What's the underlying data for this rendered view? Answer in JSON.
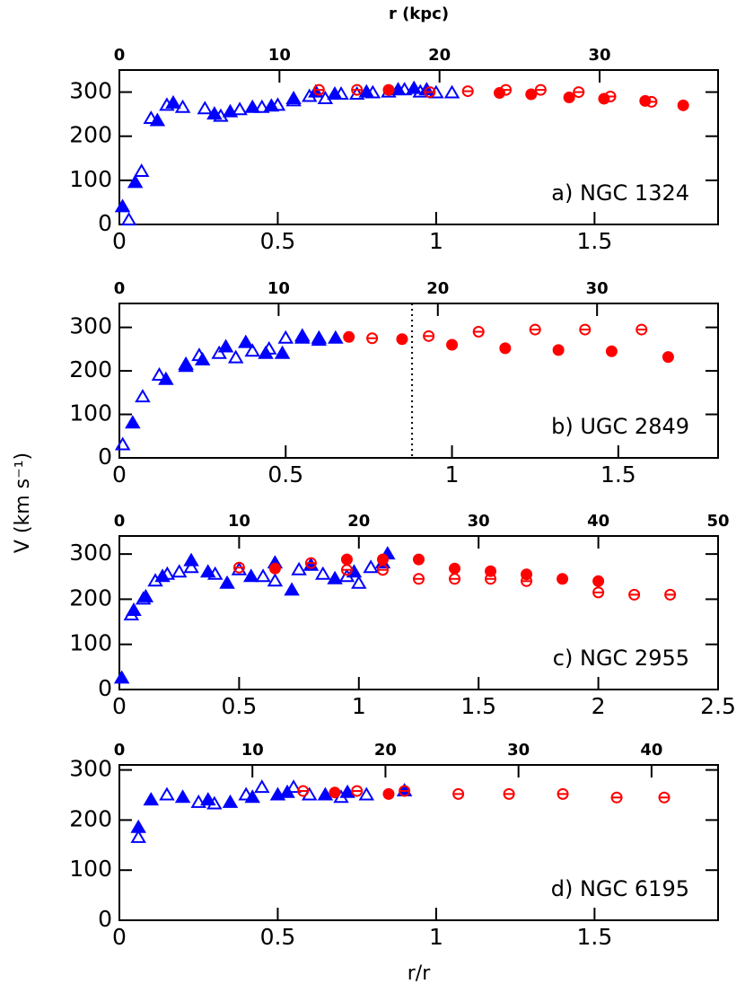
{
  "y_label": "V (km s⁻¹)",
  "chart_data": [
    {
      "type": "scatter",
      "annotation": "a) NGC 1324",
      "x2label": "r (kpc)",
      "xlim": [
        0,
        1.89
      ],
      "xticks": [
        0,
        0.5,
        1,
        1.5
      ],
      "x2lim": [
        0,
        37.4
      ],
      "x2ticks": [
        0,
        10,
        20,
        30
      ],
      "ylim": [
        0,
        350
      ],
      "yticks": [
        0,
        100,
        200,
        300
      ],
      "series": [
        {
          "color": "#0000ff",
          "marker": "triangle",
          "filled": false,
          "x": [
            0.03,
            0.07,
            0.1,
            0.15,
            0.2,
            0.27,
            0.32,
            0.38,
            0.45,
            0.5,
            0.55,
            0.6,
            0.65,
            0.7,
            0.75,
            0.8,
            0.85,
            0.9,
            0.95,
            1.0,
            1.05
          ],
          "values": [
            10,
            120,
            240,
            270,
            265,
            262,
            245,
            260,
            265,
            270,
            280,
            290,
            285,
            295,
            295,
            298,
            300,
            305,
            300,
            298,
            298
          ]
        },
        {
          "color": "#0000ff",
          "marker": "triangle",
          "filled": true,
          "x": [
            0.01,
            0.05,
            0.12,
            0.17,
            0.3,
            0.35,
            0.42,
            0.48,
            0.55,
            0.62,
            0.68,
            0.78,
            0.88,
            0.93,
            0.97
          ],
          "values": [
            40,
            95,
            235,
            275,
            250,
            255,
            265,
            268,
            285,
            300,
            295,
            300,
            305,
            308,
            305
          ]
        },
        {
          "color": "#ff0000",
          "marker": "circle",
          "filled": false,
          "x": [
            0.63,
            0.75,
            0.98,
            1.1,
            1.22,
            1.33,
            1.45,
            1.55,
            1.68
          ],
          "values": [
            305,
            305,
            300,
            302,
            305,
            305,
            300,
            290,
            278
          ]
        },
        {
          "color": "#ff0000",
          "marker": "circle",
          "filled": true,
          "x": [
            0.85,
            1.2,
            1.3,
            1.42,
            1.53,
            1.66,
            1.78
          ],
          "values": [
            305,
            298,
            295,
            288,
            285,
            280,
            270
          ]
        }
      ]
    },
    {
      "type": "scatter",
      "annotation": "b) UGC 2849",
      "vline": 0.88,
      "xlim": [
        0,
        1.8
      ],
      "xticks": [
        0,
        0.5,
        1,
        1.5
      ],
      "x2lim": [
        0,
        37.6
      ],
      "x2ticks": [
        0,
        10,
        20,
        30
      ],
      "ylim": [
        0,
        355
      ],
      "yticks": [
        0,
        100,
        200,
        300
      ],
      "series": [
        {
          "color": "#0000ff",
          "marker": "triangle",
          "filled": false,
          "x": [
            0.01,
            0.07,
            0.12,
            0.2,
            0.24,
            0.3,
            0.35,
            0.4,
            0.45,
            0.5,
            0.55,
            0.6
          ],
          "values": [
            30,
            140,
            190,
            215,
            235,
            240,
            230,
            245,
            250,
            275,
            280,
            275
          ]
        },
        {
          "color": "#0000ff",
          "marker": "triangle",
          "filled": true,
          "x": [
            0.04,
            0.14,
            0.2,
            0.25,
            0.32,
            0.38,
            0.44,
            0.49,
            0.55,
            0.6,
            0.65
          ],
          "values": [
            80,
            180,
            210,
            225,
            255,
            265,
            240,
            240,
            275,
            270,
            275
          ]
        },
        {
          "color": "#ff0000",
          "marker": "circle",
          "filled": false,
          "x": [
            0.76,
            0.93,
            1.08,
            1.25,
            1.4,
            1.57
          ],
          "values": [
            275,
            280,
            290,
            295,
            295,
            295
          ]
        },
        {
          "color": "#ff0000",
          "marker": "circle",
          "filled": true,
          "x": [
            0.69,
            0.85,
            1.0,
            1.16,
            1.32,
            1.48,
            1.65
          ],
          "values": [
            278,
            273,
            260,
            252,
            248,
            245,
            232
          ]
        }
      ]
    },
    {
      "type": "scatter",
      "annotation": "c) NGC 2955",
      "xlim": [
        0,
        2.5
      ],
      "xticks": [
        0,
        0.5,
        1,
        1.5,
        2,
        2.5
      ],
      "x2lim": [
        0,
        50
      ],
      "x2ticks": [
        0,
        10,
        20,
        30,
        40,
        50
      ],
      "ylim": [
        0,
        340
      ],
      "yticks": [
        0,
        100,
        200,
        300
      ],
      "series": [
        {
          "color": "#0000ff",
          "marker": "triangle",
          "filled": false,
          "x": [
            0.05,
            0.1,
            0.15,
            0.2,
            0.25,
            0.3,
            0.4,
            0.5,
            0.6,
            0.65,
            0.75,
            0.85,
            0.95,
            1.0,
            1.05
          ],
          "values": [
            165,
            200,
            240,
            255,
            260,
            270,
            255,
            265,
            250,
            240,
            265,
            255,
            250,
            235,
            270
          ]
        },
        {
          "color": "#0000ff",
          "marker": "triangle",
          "filled": true,
          "x": [
            0.01,
            0.06,
            0.11,
            0.18,
            0.3,
            0.37,
            0.45,
            0.55,
            0.65,
            0.72,
            0.8,
            0.9,
            0.98,
            1.1,
            1.12
          ],
          "values": [
            25,
            175,
            205,
            250,
            285,
            260,
            235,
            250,
            280,
            220,
            275,
            245,
            260,
            280,
            300
          ]
        },
        {
          "color": "#ff0000",
          "marker": "circle",
          "filled": false,
          "x": [
            0.5,
            0.8,
            0.95,
            1.1,
            1.25,
            1.4,
            1.55,
            1.7,
            2.0,
            2.15,
            2.3
          ],
          "values": [
            270,
            280,
            265,
            265,
            245,
            245,
            245,
            240,
            215,
            210,
            210
          ]
        },
        {
          "color": "#ff0000",
          "marker": "circle",
          "filled": true,
          "x": [
            0.65,
            0.95,
            1.1,
            1.25,
            1.4,
            1.55,
            1.7,
            1.85,
            2.0
          ],
          "values": [
            268,
            288,
            288,
            288,
            268,
            262,
            255,
            245,
            240
          ]
        }
      ]
    },
    {
      "type": "scatter",
      "annotation": "d) NGC 6195",
      "xlabel": "r/r",
      "xlim": [
        0,
        1.89
      ],
      "xticks": [
        0,
        0.5,
        1,
        1.5
      ],
      "x2lim": [
        0,
        45
      ],
      "x2ticks": [
        0,
        10,
        20,
        30,
        40
      ],
      "ylim": [
        0,
        310
      ],
      "yticks": [
        0,
        100,
        200,
        300
      ],
      "series": [
        {
          "color": "#0000ff",
          "marker": "triangle",
          "filled": false,
          "x": [
            0.06,
            0.15,
            0.25,
            0.3,
            0.4,
            0.45,
            0.55,
            0.6,
            0.7,
            0.78
          ],
          "values": [
            165,
            250,
            235,
            232,
            250,
            265,
            265,
            250,
            245,
            250
          ]
        },
        {
          "color": "#0000ff",
          "marker": "triangle",
          "filled": true,
          "x": [
            0.06,
            0.1,
            0.2,
            0.28,
            0.35,
            0.42,
            0.5,
            0.53,
            0.65,
            0.72,
            0.9
          ],
          "values": [
            185,
            240,
            245,
            240,
            235,
            245,
            250,
            255,
            250,
            255,
            258
          ]
        },
        {
          "color": "#ff0000",
          "marker": "circle",
          "filled": false,
          "x": [
            0.58,
            0.75,
            0.9,
            1.07,
            1.23,
            1.4,
            1.57,
            1.72
          ],
          "values": [
            258,
            258,
            258,
            252,
            252,
            252,
            245,
            245
          ]
        },
        {
          "color": "#ff0000",
          "marker": "circle",
          "filled": true,
          "x": [
            0.68,
            0.85
          ],
          "values": [
            255,
            252
          ]
        }
      ]
    }
  ]
}
